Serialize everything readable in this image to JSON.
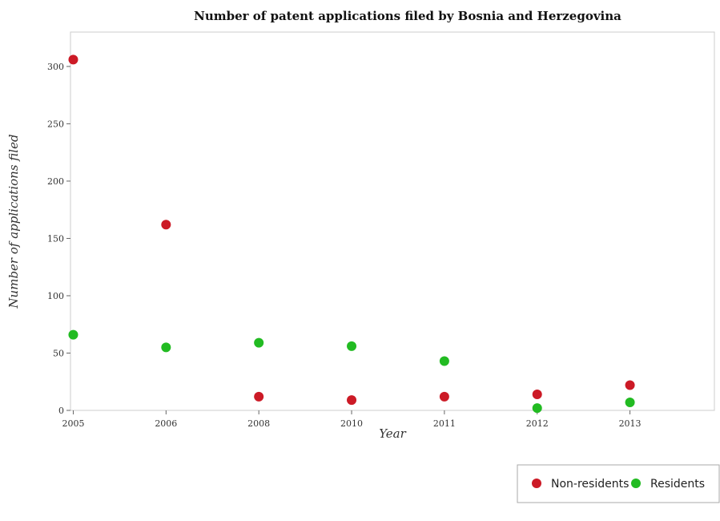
{
  "chart_data": {
    "type": "scatter",
    "title": "Number of patent applications filed by Bosnia and Herzegovina",
    "xlabel": "Year",
    "ylabel": "Number of applications filed",
    "categories": [
      "2005",
      "2006",
      "2008",
      "2010",
      "2011",
      "2012",
      "2013"
    ],
    "series": [
      {
        "name": "Non-residents",
        "color": "#cc1a26",
        "values": [
          306,
          162,
          12,
          9,
          12,
          14,
          22
        ]
      },
      {
        "name": "Residents",
        "color": "#22bb22",
        "values": [
          66,
          55,
          59,
          56,
          43,
          2,
          7
        ]
      }
    ],
    "ylim": [
      0,
      330
    ],
    "yticks": [
      0,
      50,
      100,
      150,
      200,
      250,
      300
    ],
    "grid": false,
    "legend_position": "bottom-right"
  }
}
